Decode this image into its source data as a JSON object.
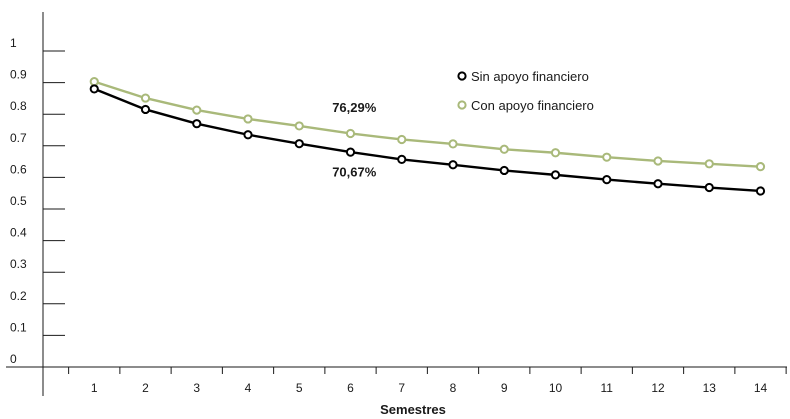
{
  "chart_data": {
    "type": "line",
    "title": "",
    "xlabel": "Semestres",
    "ylabel": "",
    "x": [
      1,
      2,
      3,
      4,
      5,
      6,
      7,
      8,
      9,
      10,
      11,
      12,
      13,
      14
    ],
    "xlim": [
      0,
      14.5
    ],
    "ylim": [
      0,
      1
    ],
    "yticks": [
      "0",
      "0.1",
      "0.2",
      "0.3",
      "0.4",
      "0.5",
      "0.6",
      "0.7",
      "0.8",
      "0.9",
      "1"
    ],
    "ytick_values": [
      0,
      0.1,
      0.2,
      0.3,
      0.4,
      0.5,
      0.6,
      0.7,
      0.8,
      0.9,
      1
    ],
    "grid": false,
    "legend_position": "top-right",
    "series": [
      {
        "name": "Sin apoyo financiero",
        "color": "#000000",
        "values": [
          0.88,
          0.815,
          0.77,
          0.735,
          0.7067,
          0.68,
          0.657,
          0.64,
          0.622,
          0.608,
          0.593,
          0.58,
          0.568,
          0.557
        ]
      },
      {
        "name": "Con apoyo financiero",
        "color": "#a9b97a",
        "values": [
          0.903,
          0.851,
          0.813,
          0.785,
          0.7629,
          0.739,
          0.72,
          0.706,
          0.689,
          0.678,
          0.664,
          0.652,
          0.643,
          0.634
        ]
      }
    ],
    "annotations": [
      {
        "text": "76,29%",
        "series": 1,
        "x": 5
      },
      {
        "text": "70,67%",
        "series": 0,
        "x": 5
      }
    ]
  }
}
